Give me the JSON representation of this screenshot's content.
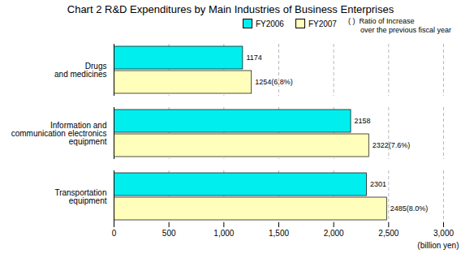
{
  "chart_data": {
    "type": "bar",
    "orientation": "horizontal",
    "title": "Chart 2 R&D Expenditures by Main Industries of Business Enterprises",
    "categories": [
      "Transportation\nequipment",
      "Information and\ncommunication electronics\nequipment",
      "Drugs\nand medicines"
    ],
    "series": [
      {
        "name": "FY2006",
        "color": "#00EEEE",
        "values": [
          2301,
          2158,
          1174
        ]
      },
      {
        "name": "FY2007",
        "color": "#FFFFBB",
        "values": [
          2485,
          2322,
          1254
        ],
        "value_labels": [
          "2485(8.0%)",
          "2322(7.6%)",
          "1254(6.8%)"
        ]
      }
    ],
    "xlabel": "(billion yen)",
    "xlim": [
      0,
      3000
    ],
    "xticks": [
      0,
      500,
      {
        "value": 1000,
        "label": "1,000"
      },
      {
        "value": 1500,
        "label": "1,500"
      },
      {
        "value": 2000,
        "label": "2,000"
      },
      {
        "value": 2500,
        "label": "2,500"
      },
      {
        "value": 3000,
        "label": "3,000"
      }
    ],
    "grid": true,
    "legend": "upper right",
    "data_labels": true,
    "annotations": [
      "( )  Ratio of Increase\n      over the previous fiscal year"
    ]
  }
}
